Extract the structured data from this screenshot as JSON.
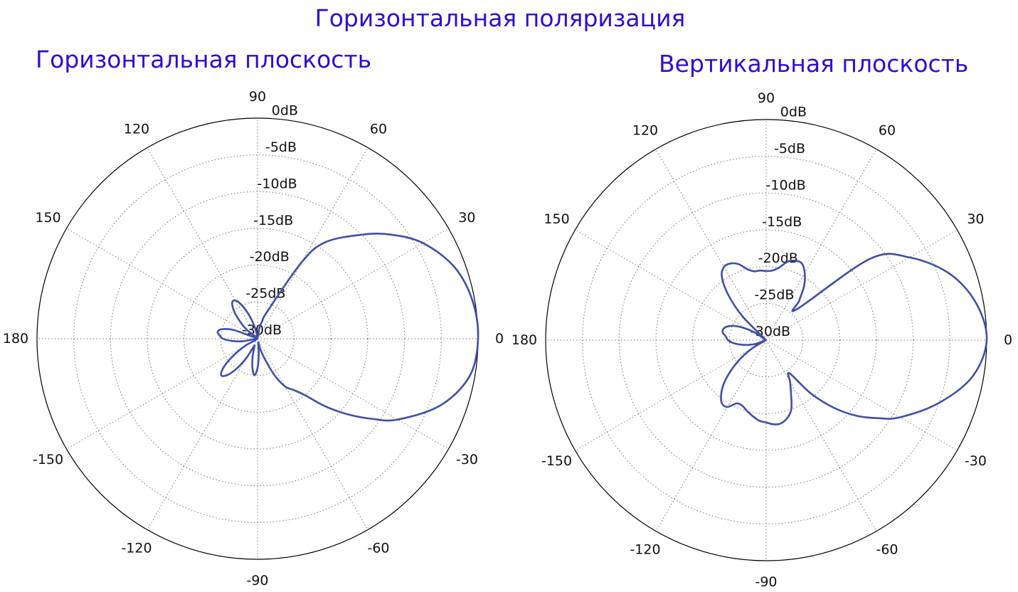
{
  "title": "Горизонтальная поляризация",
  "colors": {
    "title": "#2b0fd4",
    "curve": "#3f4fa8",
    "grid": "#777777",
    "frame": "#000000"
  },
  "chart_data": [
    {
      "type": "polar-line",
      "title": "Горизонтальная плоскость",
      "angle_tick_labels": [
        "0",
        "30",
        "60",
        "90",
        "120",
        "150",
        "180",
        "-150",
        "-120",
        "-90",
        "-60",
        "-30"
      ],
      "angle_ticks_deg": [
        0,
        30,
        60,
        90,
        120,
        150,
        180,
        -150,
        -120,
        -90,
        -60,
        -30
      ],
      "radial_tick_labels": [
        "0dB",
        "-5dB",
        "-10dB",
        "-15dB",
        "-20dB",
        "-25dB",
        "-30dB"
      ],
      "radial_ticks_db": [
        0,
        -5,
        -10,
        -15,
        -20,
        -25,
        -30
      ],
      "rlim_db": [
        -30,
        0
      ],
      "grid": true,
      "series": [
        {
          "angle_deg": [
            0,
            10,
            20,
            30,
            38,
            45,
            55,
            60,
            70,
            75,
            80,
            90,
            100,
            105,
            110,
            115,
            120,
            125,
            130,
            135,
            140,
            150,
            160,
            165,
            170,
            175,
            180,
            185,
            190,
            200,
            210,
            215,
            220,
            225,
            230,
            235,
            240,
            245,
            250,
            255,
            260,
            265,
            270,
            275,
            280,
            285,
            290,
            295,
            300,
            305,
            310,
            315,
            320,
            325,
            330,
            340,
            350,
            360
          ],
          "gain_db": [
            0,
            -0.3,
            -1.5,
            -4,
            -7,
            -10,
            -14,
            -18,
            -26,
            -27.5,
            -28.5,
            -29.9,
            -29.2,
            -28,
            -26.5,
            -25,
            -24,
            -24,
            -25,
            -26.5,
            -28,
            -29.6,
            -26.5,
            -25,
            -24.5,
            -24.8,
            -25.3,
            -26.5,
            -28,
            -29.9,
            -28,
            -26,
            -24,
            -23,
            -23.5,
            -25,
            -27,
            -28.9,
            -28.6,
            -27.4,
            -26,
            -25,
            -26,
            -28,
            -29.5,
            -28.5,
            -27,
            -24.5,
            -22.5,
            -21.5,
            -20,
            -17,
            -14,
            -11,
            -8,
            -3.5,
            -0.7,
            0
          ]
        }
      ]
    },
    {
      "type": "polar-line",
      "title": "Вертикальная плоскость",
      "angle_tick_labels": [
        "0",
        "30",
        "60",
        "90",
        "120",
        "150",
        "180",
        "-150",
        "-120",
        "-90",
        "-60",
        "-30"
      ],
      "angle_ticks_deg": [
        0,
        30,
        60,
        90,
        120,
        150,
        180,
        -150,
        -120,
        -90,
        -60,
        -30
      ],
      "radial_tick_labels": [
        "0dB",
        "-5dB",
        "-10dB",
        "-15dB",
        "-20dB",
        "-25dB",
        "-30dB"
      ],
      "radial_ticks_db": [
        0,
        -5,
        -10,
        -15,
        -20,
        -25,
        -30
      ],
      "rlim_db": [
        -30,
        0
      ],
      "grid": true,
      "series": [
        {
          "angle_deg": [
            0,
            10,
            20,
            30,
            38,
            45,
            50,
            55,
            60,
            65,
            70,
            75,
            80,
            85,
            90,
            95,
            100,
            105,
            110,
            115,
            120,
            125,
            130,
            135,
            140,
            145,
            150,
            155,
            160,
            165,
            170,
            175,
            180,
            185,
            190,
            195,
            200,
            205,
            210,
            215,
            220,
            225,
            230,
            235,
            240,
            245,
            250,
            255,
            260,
            265,
            270,
            275,
            280,
            285,
            290,
            295,
            300,
            305,
            310,
            315,
            320,
            325,
            330,
            340,
            350,
            360
          ],
          "gain_db": [
            0,
            -1,
            -3.5,
            -7.5,
            -12,
            -24,
            -23,
            -21,
            -19.5,
            -18.5,
            -18.5,
            -19,
            -20,
            -20.5,
            -20.6,
            -20.5,
            -20.5,
            -20,
            -19,
            -18.5,
            -18.5,
            -19.5,
            -22,
            -25.5,
            -29.8,
            -28.5,
            -27,
            -25.5,
            -24.5,
            -24,
            -24,
            -24.5,
            -24.8,
            -25.5,
            -26.5,
            -27.5,
            -28.5,
            -29.8,
            -28,
            -26,
            -24,
            -22,
            -20.5,
            -19.5,
            -19.5,
            -20.5,
            -20.5,
            -20,
            -19.5,
            -19,
            -18.8,
            -18.5,
            -18.5,
            -19,
            -20,
            -22,
            -23.5,
            -24.5,
            -20.5,
            -17,
            -14,
            -11.5,
            -9,
            -5,
            -1.5,
            0
          ]
        }
      ]
    }
  ]
}
